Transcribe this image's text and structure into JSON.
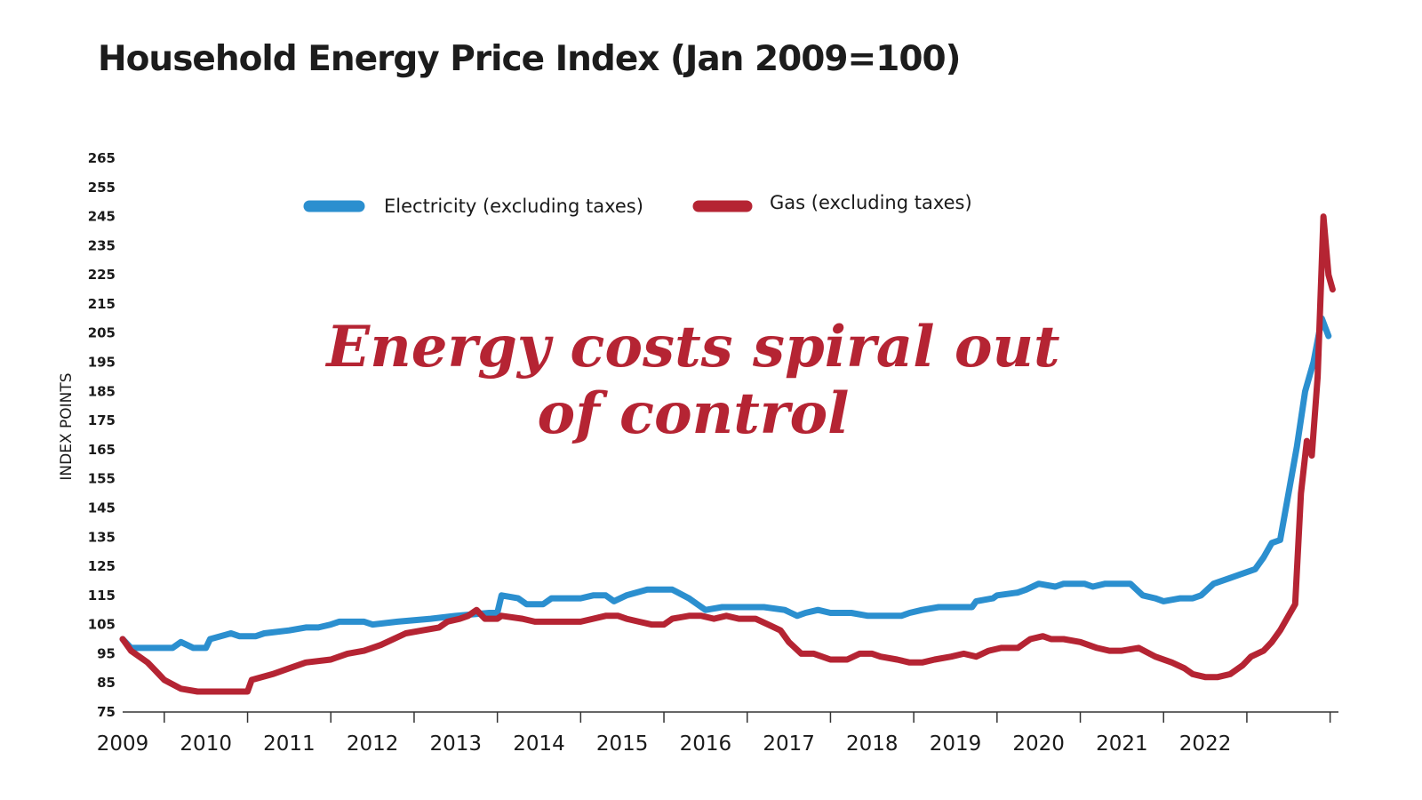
{
  "chart_data": {
    "type": "line",
    "title": "Household Energy Price Index (Jan 2009=100)",
    "ylabel": "INDEX POINTS",
    "xlabel": "",
    "ylim": [
      75,
      265
    ],
    "y_ticks": [
      "265",
      "255",
      "245",
      "235",
      "225",
      "215",
      "205",
      "195",
      "185",
      "175",
      "165",
      "155",
      "145",
      "135",
      "125",
      "115",
      "105",
      "95",
      "85",
      "75"
    ],
    "x_ticks": [
      "2009",
      "2010",
      "2011",
      "2012",
      "2013",
      "2014",
      "2015",
      "2016",
      "2017",
      "2018",
      "2019",
      "2020",
      "2021",
      "2022"
    ],
    "annotation": "Energy costs spiral out of control",
    "grid": false,
    "legend_position": "top",
    "series": [
      {
        "name": "Electricity (excluding taxes)",
        "color": "#2b8fcf",
        "points": [
          [
            2009.0,
            100
          ],
          [
            2009.1,
            97
          ],
          [
            2009.4,
            97
          ],
          [
            2009.6,
            97
          ],
          [
            2009.7,
            99
          ],
          [
            2009.85,
            97
          ],
          [
            2010.0,
            97
          ],
          [
            2010.05,
            100
          ],
          [
            2010.3,
            102
          ],
          [
            2010.4,
            101
          ],
          [
            2010.6,
            101
          ],
          [
            2010.7,
            102
          ],
          [
            2011.0,
            103
          ],
          [
            2011.2,
            104
          ],
          [
            2011.35,
            104
          ],
          [
            2011.5,
            105
          ],
          [
            2011.6,
            106
          ],
          [
            2011.9,
            106
          ],
          [
            2012.0,
            105
          ],
          [
            2012.3,
            106
          ],
          [
            2012.7,
            107
          ],
          [
            2013.0,
            108
          ],
          [
            2013.4,
            109
          ],
          [
            2013.5,
            109
          ],
          [
            2013.55,
            115
          ],
          [
            2013.75,
            114
          ],
          [
            2013.85,
            112
          ],
          [
            2014.05,
            112
          ],
          [
            2014.15,
            114
          ],
          [
            2014.5,
            114
          ],
          [
            2014.65,
            115
          ],
          [
            2014.8,
            115
          ],
          [
            2014.9,
            113
          ],
          [
            2015.05,
            115
          ],
          [
            2015.3,
            117
          ],
          [
            2015.5,
            117
          ],
          [
            2015.6,
            117
          ],
          [
            2015.8,
            114
          ],
          [
            2015.9,
            112
          ],
          [
            2016.0,
            110
          ],
          [
            2016.2,
            111
          ],
          [
            2016.5,
            111
          ],
          [
            2016.7,
            111
          ],
          [
            2016.95,
            110
          ],
          [
            2017.1,
            108
          ],
          [
            2017.2,
            109
          ],
          [
            2017.35,
            110
          ],
          [
            2017.5,
            109
          ],
          [
            2017.75,
            109
          ],
          [
            2017.95,
            108
          ],
          [
            2018.15,
            108
          ],
          [
            2018.35,
            108
          ],
          [
            2018.45,
            109
          ],
          [
            2018.6,
            110
          ],
          [
            2018.8,
            111
          ],
          [
            2019.0,
            111
          ],
          [
            2019.2,
            111
          ],
          [
            2019.25,
            113
          ],
          [
            2019.45,
            114
          ],
          [
            2019.5,
            115
          ],
          [
            2019.75,
            116
          ],
          [
            2019.85,
            117
          ],
          [
            2020.0,
            119
          ],
          [
            2020.2,
            118
          ],
          [
            2020.3,
            119
          ],
          [
            2020.55,
            119
          ],
          [
            2020.65,
            118
          ],
          [
            2020.8,
            119
          ],
          [
            2020.95,
            119
          ],
          [
            2021.1,
            119
          ],
          [
            2021.25,
            115
          ],
          [
            2021.4,
            114
          ],
          [
            2021.5,
            113
          ],
          [
            2021.7,
            114
          ],
          [
            2021.85,
            114
          ],
          [
            2021.95,
            115
          ],
          [
            2022.1,
            119
          ],
          [
            2022.3,
            121
          ],
          [
            2022.6,
            124
          ],
          [
            2022.7,
            128
          ],
          [
            2022.8,
            133
          ],
          [
            2022.9,
            134
          ],
          [
            2023.0,
            150
          ],
          [
            2023.1,
            166
          ],
          [
            2023.2,
            185
          ],
          [
            2023.3,
            195
          ],
          [
            2023.4,
            210
          ],
          [
            2023.48,
            204
          ]
        ]
      },
      {
        "name": "Gas (excluding taxes)",
        "color": "#b52433",
        "points": [
          [
            2009.0,
            100
          ],
          [
            2009.1,
            96
          ],
          [
            2009.3,
            92
          ],
          [
            2009.4,
            89
          ],
          [
            2009.5,
            86
          ],
          [
            2009.7,
            83
          ],
          [
            2009.9,
            82
          ],
          [
            2010.2,
            82
          ],
          [
            2010.4,
            82
          ],
          [
            2010.5,
            82
          ],
          [
            2010.55,
            86
          ],
          [
            2010.8,
            88
          ],
          [
            2011.0,
            90
          ],
          [
            2011.2,
            92
          ],
          [
            2011.5,
            93
          ],
          [
            2011.7,
            95
          ],
          [
            2011.9,
            96
          ],
          [
            2012.1,
            98
          ],
          [
            2012.4,
            102
          ],
          [
            2012.6,
            103
          ],
          [
            2012.8,
            104
          ],
          [
            2012.9,
            106
          ],
          [
            2013.05,
            107
          ],
          [
            2013.15,
            108
          ],
          [
            2013.25,
            110
          ],
          [
            2013.35,
            107
          ],
          [
            2013.5,
            107
          ],
          [
            2013.55,
            108
          ],
          [
            2013.8,
            107
          ],
          [
            2013.95,
            106
          ],
          [
            2014.1,
            106
          ],
          [
            2014.3,
            106
          ],
          [
            2014.5,
            106
          ],
          [
            2014.65,
            107
          ],
          [
            2014.8,
            108
          ],
          [
            2014.95,
            108
          ],
          [
            2015.05,
            107
          ],
          [
            2015.2,
            106
          ],
          [
            2015.35,
            105
          ],
          [
            2015.5,
            105
          ],
          [
            2015.6,
            107
          ],
          [
            2015.8,
            108
          ],
          [
            2015.95,
            108
          ],
          [
            2016.1,
            107
          ],
          [
            2016.25,
            108
          ],
          [
            2016.4,
            107
          ],
          [
            2016.6,
            107
          ],
          [
            2016.75,
            105
          ],
          [
            2016.9,
            103
          ],
          [
            2017.0,
            99
          ],
          [
            2017.15,
            95
          ],
          [
            2017.3,
            95
          ],
          [
            2017.5,
            93
          ],
          [
            2017.7,
            93
          ],
          [
            2017.85,
            95
          ],
          [
            2018.0,
            95
          ],
          [
            2018.1,
            94
          ],
          [
            2018.3,
            93
          ],
          [
            2018.45,
            92
          ],
          [
            2018.6,
            92
          ],
          [
            2018.75,
            93
          ],
          [
            2018.95,
            94
          ],
          [
            2019.1,
            95
          ],
          [
            2019.25,
            94
          ],
          [
            2019.4,
            96
          ],
          [
            2019.55,
            97
          ],
          [
            2019.75,
            97
          ],
          [
            2019.9,
            100
          ],
          [
            2020.05,
            101
          ],
          [
            2020.15,
            100
          ],
          [
            2020.3,
            100
          ],
          [
            2020.5,
            99
          ],
          [
            2020.7,
            97
          ],
          [
            2020.85,
            96
          ],
          [
            2021.0,
            96
          ],
          [
            2021.2,
            97
          ],
          [
            2021.4,
            94
          ],
          [
            2021.6,
            92
          ],
          [
            2021.75,
            90
          ],
          [
            2021.85,
            88
          ],
          [
            2022.0,
            87
          ],
          [
            2022.15,
            87
          ],
          [
            2022.3,
            88
          ],
          [
            2022.45,
            91
          ],
          [
            2022.55,
            94
          ],
          [
            2022.7,
            96
          ],
          [
            2022.8,
            99
          ],
          [
            2022.9,
            103
          ],
          [
            2023.0,
            108
          ],
          [
            2023.08,
            112
          ],
          [
            2023.15,
            150
          ],
          [
            2023.22,
            168
          ],
          [
            2023.28,
            163
          ],
          [
            2023.35,
            190
          ],
          [
            2023.42,
            245
          ],
          [
            2023.48,
            225
          ],
          [
            2023.53,
            220
          ]
        ]
      }
    ]
  }
}
